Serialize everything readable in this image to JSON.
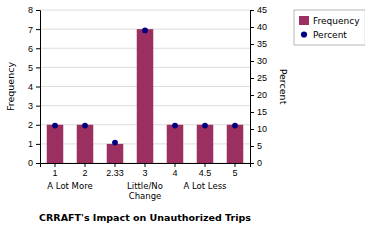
{
  "chart_data": {
    "type": "bar",
    "title": "CRRAFT's Impact on Unauthorized Trips",
    "categories": [
      "1",
      "2",
      "2.33",
      "3",
      "4",
      "4.5",
      "5"
    ],
    "series": [
      {
        "name": "Frequency",
        "type": "bar",
        "color": "#9B3060",
        "values": [
          2,
          2,
          1,
          7,
          2,
          2,
          2
        ]
      },
      {
        "name": "Percent",
        "type": "scatter",
        "axis": "y2",
        "marker": "circle",
        "color": "#000080",
        "values": [
          11,
          11,
          6,
          39,
          11,
          11,
          11
        ]
      }
    ],
    "ylabel": "Frequency",
    "y2label": "Percent",
    "ylim": [
      0,
      8
    ],
    "yticks": [
      0,
      1,
      2,
      3,
      4,
      5,
      6,
      7,
      8
    ],
    "y2lim": [
      0,
      45
    ],
    "y2ticks": [
      0,
      5,
      10,
      15,
      20,
      25,
      30,
      35,
      40,
      45
    ],
    "grid": true,
    "legend": "right",
    "annotations": [
      {
        "text": "A Lot More",
        "from": "1",
        "to": "2"
      },
      {
        "text": "Little/No\nChange",
        "from": "2.33",
        "to": "4"
      },
      {
        "text": "A Lot Less",
        "from": "4",
        "to": "5"
      }
    ]
  }
}
